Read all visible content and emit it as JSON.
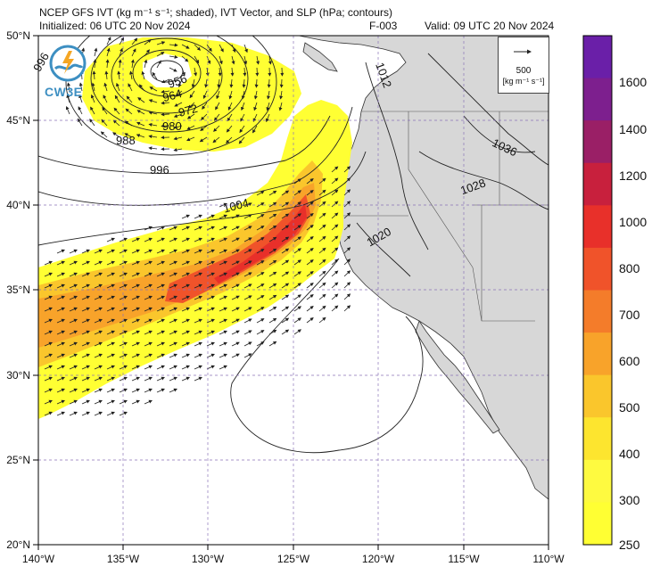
{
  "header": {
    "title": "NCEP GFS IVT (kg m⁻¹ s⁻¹; shaded), IVT Vector, and SLP (hPa; contours)",
    "initialized": "Initialized: 06 UTC 20 Nov 2024",
    "forecast_hour": "F-003",
    "valid": "Valid: 09 UTC 20 Nov 2024"
  },
  "logo": {
    "text": "CW3E"
  },
  "reference_vector": {
    "value": "500",
    "units": "[kg m⁻¹ s⁻¹]"
  },
  "axes": {
    "lon_ticks": [
      "140°W",
      "135°W",
      "130°W",
      "125°W",
      "120°W",
      "115°W",
      "110°W"
    ],
    "lat_ticks": [
      "50°N",
      "45°N",
      "40°N",
      "35°N",
      "30°N",
      "25°N",
      "20°N"
    ]
  },
  "colorbar": {
    "levels": [
      "1600",
      "1400",
      "1200",
      "1000",
      "800",
      "700",
      "600",
      "500",
      "400",
      "300",
      "250"
    ],
    "colors": [
      "#6a1fa8",
      "#7d1f8e",
      "#9a1f66",
      "#c8203d",
      "#e8302a",
      "#f0532a",
      "#f47c2a",
      "#f8a32a",
      "#fac62c",
      "#fde52f",
      "#fefa40",
      "#ffff33"
    ]
  },
  "slp_labels": [
    "996",
    "956",
    "964",
    "972",
    "980",
    "988",
    "996",
    "1004",
    "1012",
    "1020",
    "1028",
    "1036"
  ],
  "colors": {
    "land": "#d7d7d7",
    "ocean": "#ffffff",
    "grid": "#8a73b8",
    "contour": "#222222",
    "ivt_low": "#ffff33",
    "ivt_mid": "#f8a32a",
    "ivt_high": "#e8302a"
  }
}
